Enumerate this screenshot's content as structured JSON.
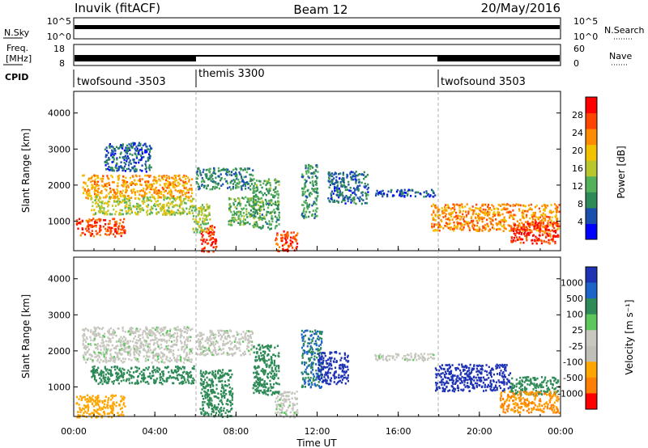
{
  "header": {
    "station": "Inuvik (fitACF)",
    "beam": "Beam 12",
    "date": "20/May/2016"
  },
  "summary_panels": {
    "nsky": {
      "label": "N.Sky",
      "right_label": "N.Search",
      "left_ticks": [
        "10^5",
        "10^0"
      ],
      "right_ticks": [
        "10^5",
        "10^0"
      ]
    },
    "freq": {
      "label_line1": "Freq.",
      "label_line2": "[MHz]",
      "right_label": "Nave",
      "left_ticks": [
        "18",
        "8"
      ],
      "right_ticks": [
        "60",
        "0"
      ]
    },
    "cpid": {
      "label": "CPID",
      "modes": [
        {
          "name": "twofsound -3503",
          "start_hour": 0,
          "end_hour": 6
        },
        {
          "name": "themis 3300",
          "start_hour": 6,
          "end_hour": 18
        },
        {
          "name": "twofsound 3503",
          "start_hour": 18,
          "end_hour": 24
        }
      ]
    }
  },
  "colors": {
    "power_scale": [
      "#0000ff",
      "#1b4fae",
      "#2e8b57",
      "#55b05a",
      "#b8c72e",
      "#f2c100",
      "#ff8c00",
      "#ff4500",
      "#ff0000"
    ],
    "velocity_scale": [
      "#1e32b4",
      "#1e64c8",
      "#2e8b57",
      "#5cc85c",
      "#c8c8c0",
      "#c0c0b8",
      "#ffa500",
      "#ff7f00",
      "#ff0000"
    ],
    "frame": "#000000"
  },
  "chart_data": [
    {
      "type": "heatmap",
      "name": "power",
      "ylabel": "Slant Range [km]",
      "ylim": [
        180,
        4600
      ],
      "xlim": [
        0,
        24
      ],
      "yticks": [
        "1000",
        "2000",
        "3000",
        "4000"
      ],
      "colorbar": {
        "label": "Power [dB]",
        "ticks": [
          "28",
          "24",
          "20",
          "16",
          "12",
          "8",
          "4"
        ],
        "range": [
          0,
          32
        ]
      },
      "regions": [
        {
          "t0": 0.1,
          "t1": 2.5,
          "r0": 600,
          "r1": 1100,
          "value": 27
        },
        {
          "t0": 0.4,
          "t1": 5.8,
          "r0": 1650,
          "r1": 2300,
          "value": 22
        },
        {
          "t0": 0.8,
          "t1": 5.9,
          "r0": 1200,
          "r1": 1700,
          "value": 16
        },
        {
          "t0": 1.5,
          "t1": 3.8,
          "r0": 2400,
          "r1": 3200,
          "value": 6
        },
        {
          "t0": 6.2,
          "t1": 7.0,
          "r0": 180,
          "r1": 900,
          "value": 28
        },
        {
          "t0": 5.8,
          "t1": 6.7,
          "r0": 700,
          "r1": 1500,
          "value": 15
        },
        {
          "t0": 6.0,
          "t1": 8.8,
          "r0": 1900,
          "r1": 2500,
          "value": 9
        },
        {
          "t0": 7.6,
          "t1": 8.9,
          "r0": 900,
          "r1": 1700,
          "value": 12
        },
        {
          "t0": 8.8,
          "t1": 10.1,
          "r0": 800,
          "r1": 2200,
          "value": 11
        },
        {
          "t0": 9.9,
          "t1": 11.0,
          "r0": 180,
          "r1": 750,
          "value": 27
        },
        {
          "t0": 11.2,
          "t1": 12.0,
          "r0": 1100,
          "r1": 2600,
          "value": 10
        },
        {
          "t0": 12.5,
          "t1": 14.5,
          "r0": 1500,
          "r1": 2400,
          "value": 7
        },
        {
          "t0": 14.8,
          "t1": 17.8,
          "r0": 1700,
          "r1": 1900,
          "value": 5
        },
        {
          "t0": 17.6,
          "t1": 23.9,
          "r0": 750,
          "r1": 1500,
          "value": 23
        },
        {
          "t0": 21.5,
          "t1": 23.9,
          "r0": 400,
          "r1": 1000,
          "value": 28
        }
      ]
    },
    {
      "type": "heatmap",
      "name": "velocity",
      "xlabel": "Time UT",
      "ylabel": "Slant Range [km]",
      "ylim": [
        180,
        4600
      ],
      "xlim": [
        0,
        24
      ],
      "xticks": [
        "00:00",
        "04:00",
        "08:00",
        "12:00",
        "16:00",
        "20:00",
        "00:00"
      ],
      "yticks": [
        "1000",
        "2000",
        "3000",
        "4000"
      ],
      "colorbar": {
        "label": "Velocity [m s⁻¹]",
        "ticks": [
          "1000",
          "500",
          "100",
          "25",
          "-25",
          "-100",
          "-500",
          "-1000"
        ]
      },
      "regions": [
        {
          "t0": 0.1,
          "t1": 2.5,
          "r0": 180,
          "r1": 800,
          "value": -200
        },
        {
          "t0": 0.4,
          "t1": 5.8,
          "r0": 1700,
          "r1": 2700,
          "value": 0
        },
        {
          "t0": 0.8,
          "t1": 5.9,
          "r0": 1100,
          "r1": 1600,
          "value": 110
        },
        {
          "t0": 6.0,
          "t1": 8.8,
          "r0": 1900,
          "r1": 2600,
          "value": 0
        },
        {
          "t0": 6.2,
          "t1": 7.8,
          "r0": 180,
          "r1": 1500,
          "value": 120
        },
        {
          "t0": 8.8,
          "t1": 10.1,
          "r0": 800,
          "r1": 2200,
          "value": 90
        },
        {
          "t0": 9.9,
          "t1": 11.0,
          "r0": 180,
          "r1": 900,
          "value": 0
        },
        {
          "t0": 11.2,
          "t1": 12.2,
          "r0": 1000,
          "r1": 2600,
          "value": 300
        },
        {
          "t0": 12.0,
          "t1": 13.5,
          "r0": 1100,
          "r1": 2000,
          "value": 800
        },
        {
          "t0": 14.8,
          "t1": 17.8,
          "r0": 1750,
          "r1": 1950,
          "value": 0
        },
        {
          "t0": 17.8,
          "t1": 21.5,
          "r0": 900,
          "r1": 1650,
          "value": 900
        },
        {
          "t0": 21.5,
          "t1": 23.9,
          "r0": 800,
          "r1": 1300,
          "value": 150
        },
        {
          "t0": 21.0,
          "t1": 23.9,
          "r0": 300,
          "r1": 900,
          "value": -300
        }
      ]
    }
  ]
}
